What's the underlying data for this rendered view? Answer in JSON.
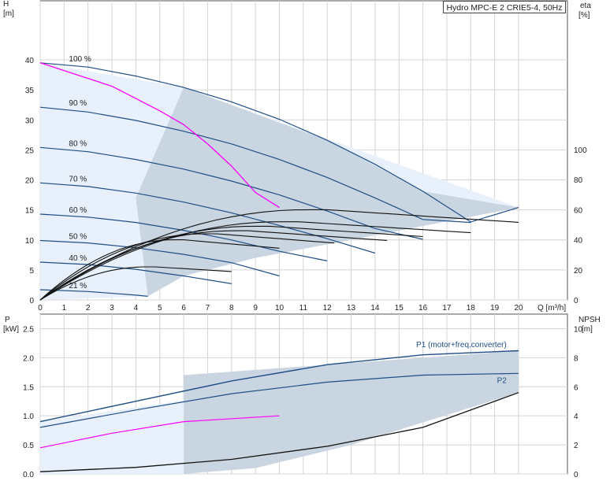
{
  "title": "Hydro MPC-E 2 CRIE5-4, 50Hz",
  "chart_data": [
    {
      "type": "line",
      "id": "upper",
      "x_axis": {
        "label": "Q [m³/h]",
        "range": [
          0,
          20
        ],
        "ticks": [
          0,
          1,
          2,
          3,
          4,
          5,
          6,
          7,
          8,
          9,
          10,
          11,
          12,
          13,
          14,
          15,
          16,
          17,
          18,
          19,
          20
        ]
      },
      "y_axis_left": {
        "name": "H",
        "unit": "[m]",
        "range": [
          0,
          40
        ],
        "ticks": [
          0,
          5,
          10,
          15,
          20,
          25,
          30,
          35,
          40
        ]
      },
      "y_axis_right": {
        "name": "eta",
        "unit": "[%]",
        "range": [
          0,
          100
        ],
        "ticks": [
          0,
          20,
          40,
          60,
          80,
          100
        ]
      },
      "grid": true,
      "speed_curves": [
        {
          "label": "100 %",
          "points": [
            [
              0,
              39.5
            ],
            [
              2,
              38.8
            ],
            [
              4,
              37.3
            ],
            [
              6,
              35.4
            ],
            [
              8,
              33.0
            ],
            [
              10,
              30.1
            ],
            [
              12,
              26.6
            ],
            [
              14,
              22.6
            ],
            [
              16,
              18.1
            ],
            [
              18,
              13.0
            ],
            [
              20,
              15.4
            ]
          ]
        },
        {
          "label": "90 %",
          "points": [
            [
              0,
              32.1
            ],
            [
              2,
              31.3
            ],
            [
              4,
              29.9
            ],
            [
              6,
              28.1
            ],
            [
              8,
              26.0
            ],
            [
              10,
              23.4
            ],
            [
              12,
              20.4
            ],
            [
              14,
              17.0
            ],
            [
              16,
              13.4
            ],
            [
              18,
              12.9
            ]
          ]
        },
        {
          "label": "80 %",
          "points": [
            [
              0,
              25.4
            ],
            [
              2,
              24.7
            ],
            [
              4,
              23.4
            ],
            [
              6,
              21.8
            ],
            [
              8,
              19.8
            ],
            [
              10,
              17.5
            ],
            [
              12,
              14.8
            ],
            [
              14,
              11.9
            ],
            [
              16,
              10.1
            ]
          ]
        },
        {
          "label": "70 %",
          "points": [
            [
              0,
              19.5
            ],
            [
              2,
              18.9
            ],
            [
              4,
              17.8
            ],
            [
              6,
              16.3
            ],
            [
              8,
              14.5
            ],
            [
              10,
              12.4
            ],
            [
              12,
              10.2
            ],
            [
              14,
              7.8
            ]
          ]
        },
        {
          "label": "60 %",
          "points": [
            [
              0,
              14.3
            ],
            [
              2,
              13.8
            ],
            [
              4,
              12.9
            ],
            [
              6,
              11.6
            ],
            [
              8,
              10.0
            ],
            [
              10,
              8.1
            ],
            [
              12,
              6.5
            ]
          ]
        },
        {
          "label": "50 %",
          "points": [
            [
              0,
              9.9
            ],
            [
              2,
              9.5
            ],
            [
              4,
              8.7
            ],
            [
              6,
              7.6
            ],
            [
              8,
              6.2
            ],
            [
              10,
              4.0
            ]
          ]
        },
        {
          "label": "40 %",
          "points": [
            [
              0,
              6.3
            ],
            [
              2,
              5.9
            ],
            [
              4,
              5.1
            ],
            [
              6,
              4.0
            ],
            [
              8,
              2.7
            ]
          ]
        },
        {
          "label": "21 %",
          "points": [
            [
              0,
              1.7
            ],
            [
              2,
              1.4
            ],
            [
              4,
              0.8
            ],
            [
              4.5,
              0.6
            ]
          ]
        }
      ],
      "system_curve": {
        "color": "#ff00ff",
        "points": [
          [
            0,
            39.5
          ],
          [
            3,
            35.6
          ],
          [
            5,
            31.5
          ],
          [
            6,
            29.2
          ],
          [
            7,
            26.0
          ],
          [
            8,
            22.3
          ],
          [
            9,
            17.9
          ],
          [
            10,
            15.4
          ]
        ]
      },
      "efficiency_curves_max_percent": [
        60,
        52,
        49,
        46,
        44,
        40,
        22
      ]
    },
    {
      "type": "line",
      "id": "lower",
      "x_axis": {
        "range": [
          0,
          20
        ]
      },
      "y_axis_left": {
        "name": "P",
        "unit": "[kW]",
        "range": [
          0,
          2.75
        ],
        "ticks": [
          0.0,
          0.5,
          1.0,
          1.5,
          2.0,
          2.5
        ]
      },
      "y_axis_right": {
        "name": "NPSH",
        "unit": "[m]",
        "range": [
          0,
          11
        ],
        "ticks": [
          0,
          2,
          4,
          6,
          8,
          10
        ]
      },
      "grid": true,
      "annotations": [
        "P1 (motor+freq.converter)",
        "P2"
      ],
      "p1_curve": {
        "points": [
          [
            0,
            0.9
          ],
          [
            4,
            1.25
          ],
          [
            8,
            1.6
          ],
          [
            12,
            1.88
          ],
          [
            16,
            2.05
          ],
          [
            20,
            2.12
          ]
        ]
      },
      "p2_curve": {
        "points": [
          [
            0,
            0.8
          ],
          [
            4,
            1.1
          ],
          [
            8,
            1.38
          ],
          [
            12,
            1.58
          ],
          [
            16,
            1.7
          ],
          [
            20,
            1.73
          ]
        ]
      },
      "npsh_curve": {
        "points": [
          [
            0,
            0.15
          ],
          [
            4,
            0.45
          ],
          [
            8,
            1.0
          ],
          [
            12,
            1.9
          ],
          [
            16,
            3.2
          ],
          [
            20,
            5.6
          ]
        ]
      }
    }
  ]
}
